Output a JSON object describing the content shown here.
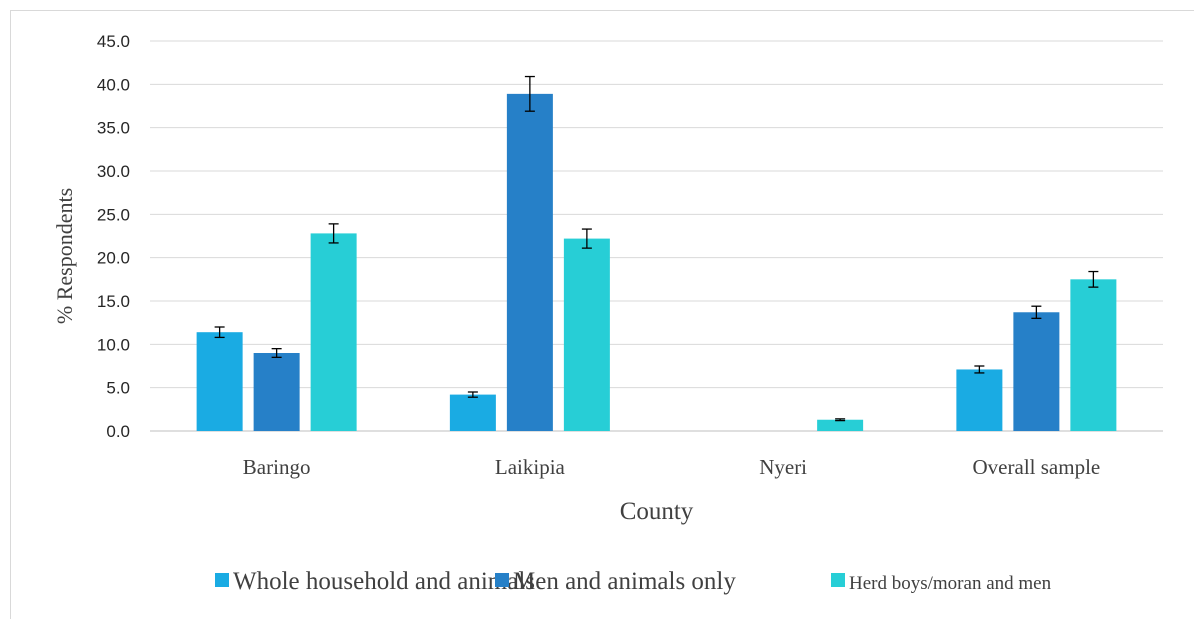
{
  "chart_data": {
    "type": "bar",
    "categories": [
      "Baringo",
      "Laikipia",
      "Nyeri",
      "Overall sample"
    ],
    "series": [
      {
        "name": "Whole household and animals",
        "color": "#1aabe3",
        "values": [
          11.4,
          4.2,
          0.0,
          7.1
        ],
        "error": [
          0.6,
          0.3,
          0.0,
          0.4
        ]
      },
      {
        "name": "Men and animals only",
        "color": "#2680c8",
        "values": [
          9.0,
          38.9,
          0.0,
          13.7
        ],
        "error": [
          0.5,
          2.0,
          0.0,
          0.7
        ]
      },
      {
        "name": "Herd boys/moran and men",
        "color": "#27ced6",
        "values": [
          22.8,
          22.2,
          1.3,
          17.5
        ],
        "error": [
          1.1,
          1.1,
          0.1,
          0.9
        ]
      }
    ],
    "xlabel": "County",
    "ylabel": "% Respondents",
    "ylim": [
      0,
      45
    ],
    "ytick_step": 5,
    "ytick_labels": [
      "0.0",
      "5.0",
      "10.0",
      "15.0",
      "20.0",
      "25.0",
      "30.0",
      "35.0",
      "40.0",
      "45.0"
    ],
    "grid": true,
    "legend_position": "bottom"
  }
}
